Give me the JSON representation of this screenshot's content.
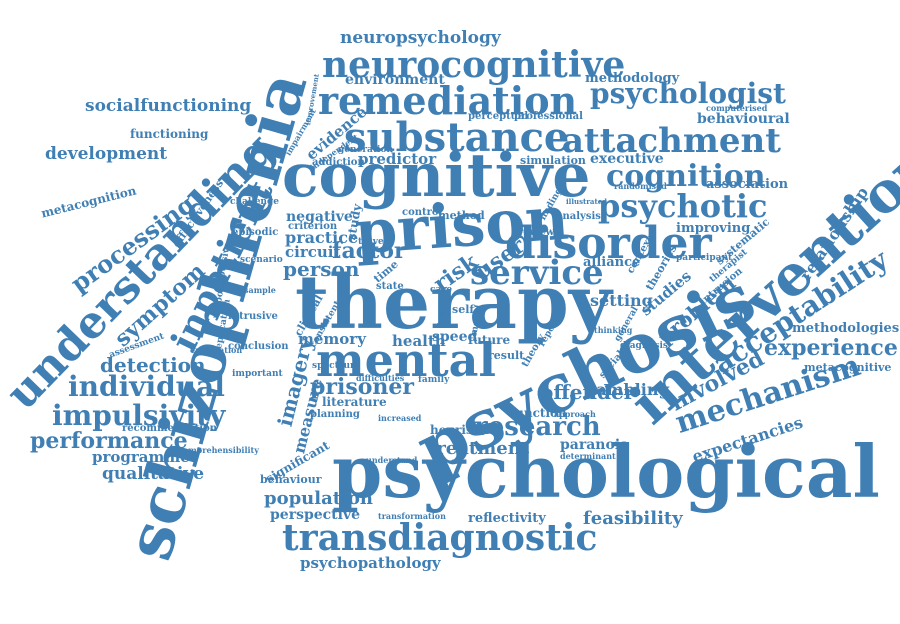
{
  "colors": {
    "word": "#3f7fb4",
    "background": "#ffffff"
  },
  "words": [
    "neuropsychology",
    "neurocognitive",
    "remediation",
    "substance",
    "attachment",
    "psychologist",
    "behavioural",
    "methodology",
    "environment",
    "socialfunctioning",
    "development",
    "functioning",
    "metacognition",
    "cognitive",
    "cognition",
    "psychotic",
    "association",
    "prison",
    "therapy",
    "disorder",
    "service",
    "risk",
    "user",
    "intervention",
    "acceptability",
    "relationship",
    "schizophrenia",
    "understanding",
    "inpatient",
    "processing",
    "symptom",
    "detection",
    "individual",
    "impulsivity",
    "performance",
    "programme",
    "qualitative",
    "mental",
    "psychosis",
    "psychological",
    "transdiagnostic",
    "psychopathology",
    "research",
    "treatment",
    "paranoia",
    "mechanism",
    "expectancies",
    "experience",
    "methodologies",
    "metacognitive",
    "involved",
    "feasibility",
    "reflectivity",
    "offender",
    "gambling",
    "population",
    "perspective",
    "imagery",
    "prisoner",
    "measure",
    "memory",
    "practice",
    "circuit",
    "person",
    "factor",
    "negative",
    "evidence",
    "predictor",
    "executive",
    "simulation",
    "problem",
    "studies",
    "improving",
    "systematic",
    "setting",
    "alliance",
    "future",
    "health",
    "speed",
    "result",
    "function",
    "heuristic",
    "behaviour",
    "significant",
    "literature",
    "planning",
    "conclusion",
    "intrusive",
    "episodic",
    "challenge",
    "scenario",
    "important",
    "recommendation",
    "assessment",
    "impulsive",
    "effectiveness",
    "replication",
    "response",
    "expectation",
    "comprehensibility",
    "impairment",
    "improvement",
    "independent",
    "addiction",
    "generation",
    "perceptual",
    "professional",
    "computerised",
    "randomised",
    "determinant",
    "diagnosis",
    "intrusion",
    "therapist",
    "participant",
    "theories",
    "context",
    "review",
    "analysis",
    "finding",
    "method",
    "control",
    "travel",
    "criterion",
    "state",
    "clinical",
    "consistent",
    "approach",
    "family",
    "increased",
    "transformation",
    "understand",
    "theory",
    "report",
    "social",
    "general",
    "thinking",
    "illustrated",
    "spectrum",
    "difficulties",
    "sample",
    "study",
    "time",
    "self",
    "model",
    "case",
    "brain"
  ]
}
